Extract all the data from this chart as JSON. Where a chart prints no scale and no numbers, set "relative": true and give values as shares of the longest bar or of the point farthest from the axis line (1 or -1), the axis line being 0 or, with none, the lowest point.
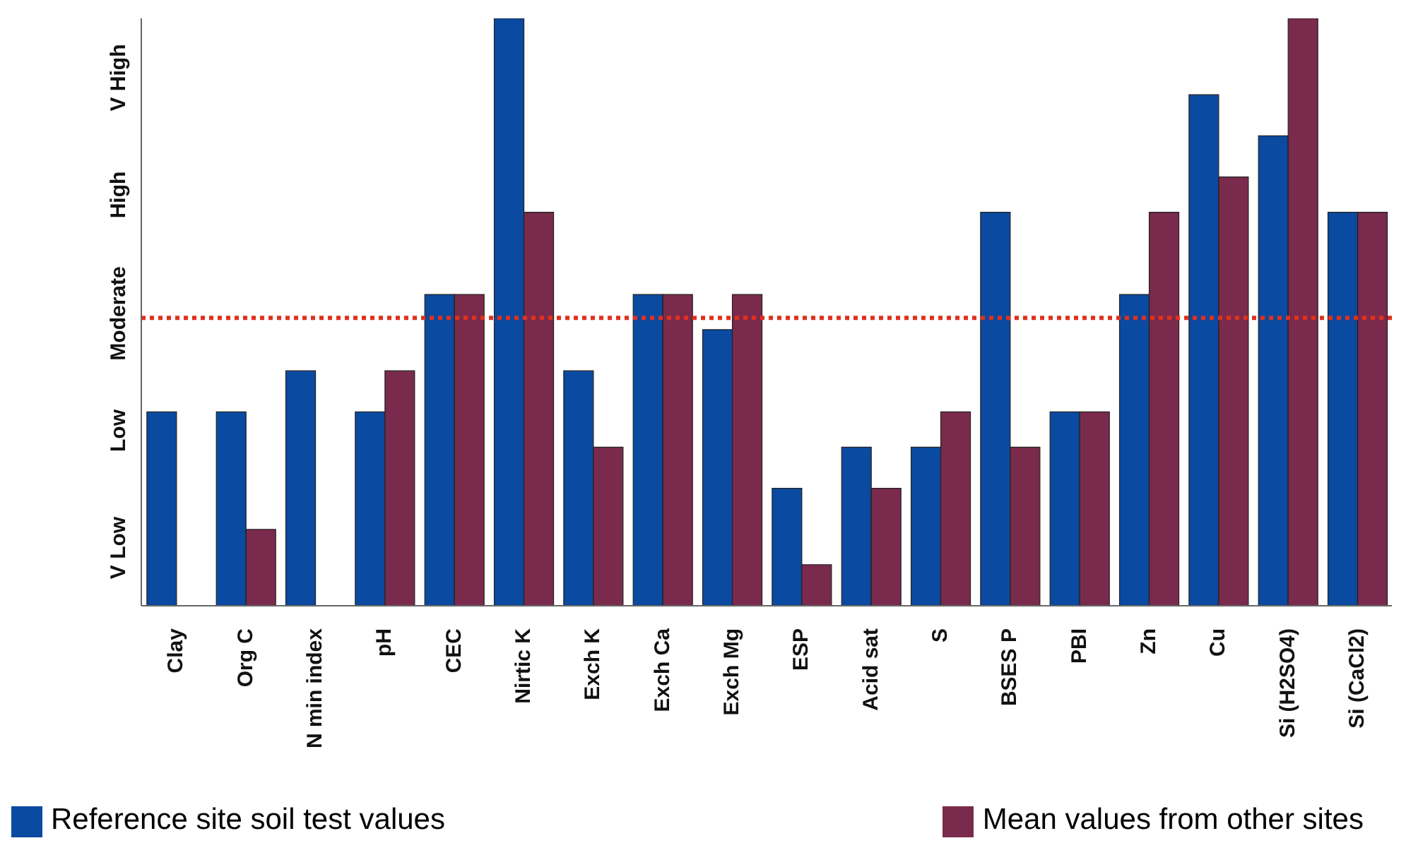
{
  "chart_data": {
    "type": "bar",
    "relative": true,
    "categories": [
      "Clay",
      "Org C",
      "N min index",
      "pH",
      "CEC",
      "Nirtic K",
      "Exch K",
      "Exch Ca",
      "Exch Mg",
      "ESP",
      "Acid sat",
      "S",
      "BSES P",
      "PBI",
      "Zn",
      "Cu",
      "Si (H2SO4)",
      "Si (CaCl2)"
    ],
    "series": [
      {
        "name": "Reference site soil test values",
        "color": "#0a4aa0",
        "values": [
          0.33,
          0.33,
          0.4,
          0.33,
          0.53,
          1,
          0.4,
          0.53,
          0.47,
          0.2,
          0.27,
          0.27,
          0.67,
          0.33,
          0.53,
          0.87,
          0.8,
          0.67
        ]
      },
      {
        "name": "Mean values from other sites",
        "color": "#7a2a4c",
        "values": [
          null,
          0.13,
          null,
          0.4,
          0.53,
          0.67,
          0.27,
          0.53,
          0.53,
          0.07,
          0.2,
          0.33,
          0.27,
          0.33,
          0.67,
          0.73,
          1,
          0.67
        ]
      }
    ],
    "annotations": [
      "V Low",
      "Low",
      "Moderate",
      "High",
      "V High"
    ],
    "ref_lines": [
      {
        "axis": "y",
        "value": 0.49,
        "color": "#e0301e",
        "line_style": "dotted"
      }
    ],
    "legend": "bottom"
  }
}
